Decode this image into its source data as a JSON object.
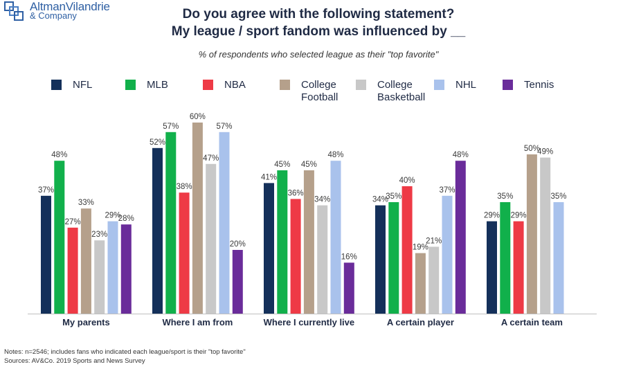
{
  "logo": {
    "line1": "AltmanVilandrie",
    "line2": "& Company"
  },
  "colors": {
    "NFL": "#14305a",
    "MLB": "#11b04b",
    "NBA": "#ee3a46",
    "College Football": "#b5a08b",
    "College Basketball": "#c8c8c8",
    "NHL": "#a9c2ec",
    "Tennis": "#6a2c9a"
  },
  "chart_data": {
    "type": "bar",
    "title": "Do you agree with the following statement?",
    "title_line2": "My league / sport fandom was influenced by __",
    "subtitle": "% of respondents who selected league as their \"top favorite\"",
    "legend": [
      {
        "key": "NFL",
        "label": "NFL"
      },
      {
        "key": "MLB",
        "label": "MLB"
      },
      {
        "key": "NBA",
        "label": "NBA"
      },
      {
        "key": "College Football",
        "label": "College\nFootball"
      },
      {
        "key": "College Basketball",
        "label": "College\nBasketball"
      },
      {
        "key": "NHL",
        "label": "NHL"
      },
      {
        "key": "Tennis",
        "label": "Tennis"
      }
    ],
    "ylim": [
      0,
      65
    ],
    "categories": [
      "My parents",
      "Where I am from",
      "Where I currently live",
      "A certain player",
      "A certain team"
    ],
    "series": [
      {
        "name": "NFL",
        "values": [
          37,
          52,
          41,
          34,
          29
        ]
      },
      {
        "name": "MLB",
        "values": [
          48,
          57,
          45,
          35,
          35
        ]
      },
      {
        "name": "NBA",
        "values": [
          27,
          38,
          36,
          40,
          29
        ]
      },
      {
        "name": "College Football",
        "values": [
          33,
          60,
          45,
          19,
          50
        ]
      },
      {
        "name": "College Basketball",
        "values": [
          23,
          47,
          34,
          21,
          49
        ]
      },
      {
        "name": "NHL",
        "values": [
          29,
          57,
          48,
          37,
          35
        ]
      },
      {
        "name": "Tennis",
        "values": [
          28,
          20,
          16,
          48,
          null
        ]
      }
    ],
    "value_suffix": "%"
  },
  "notes": "Notes: n=2546; includes fans who indicated each league/sport is their \"top favorite\"",
  "sources": "Sources: AV&Co. 2019 Sports and News Survey"
}
